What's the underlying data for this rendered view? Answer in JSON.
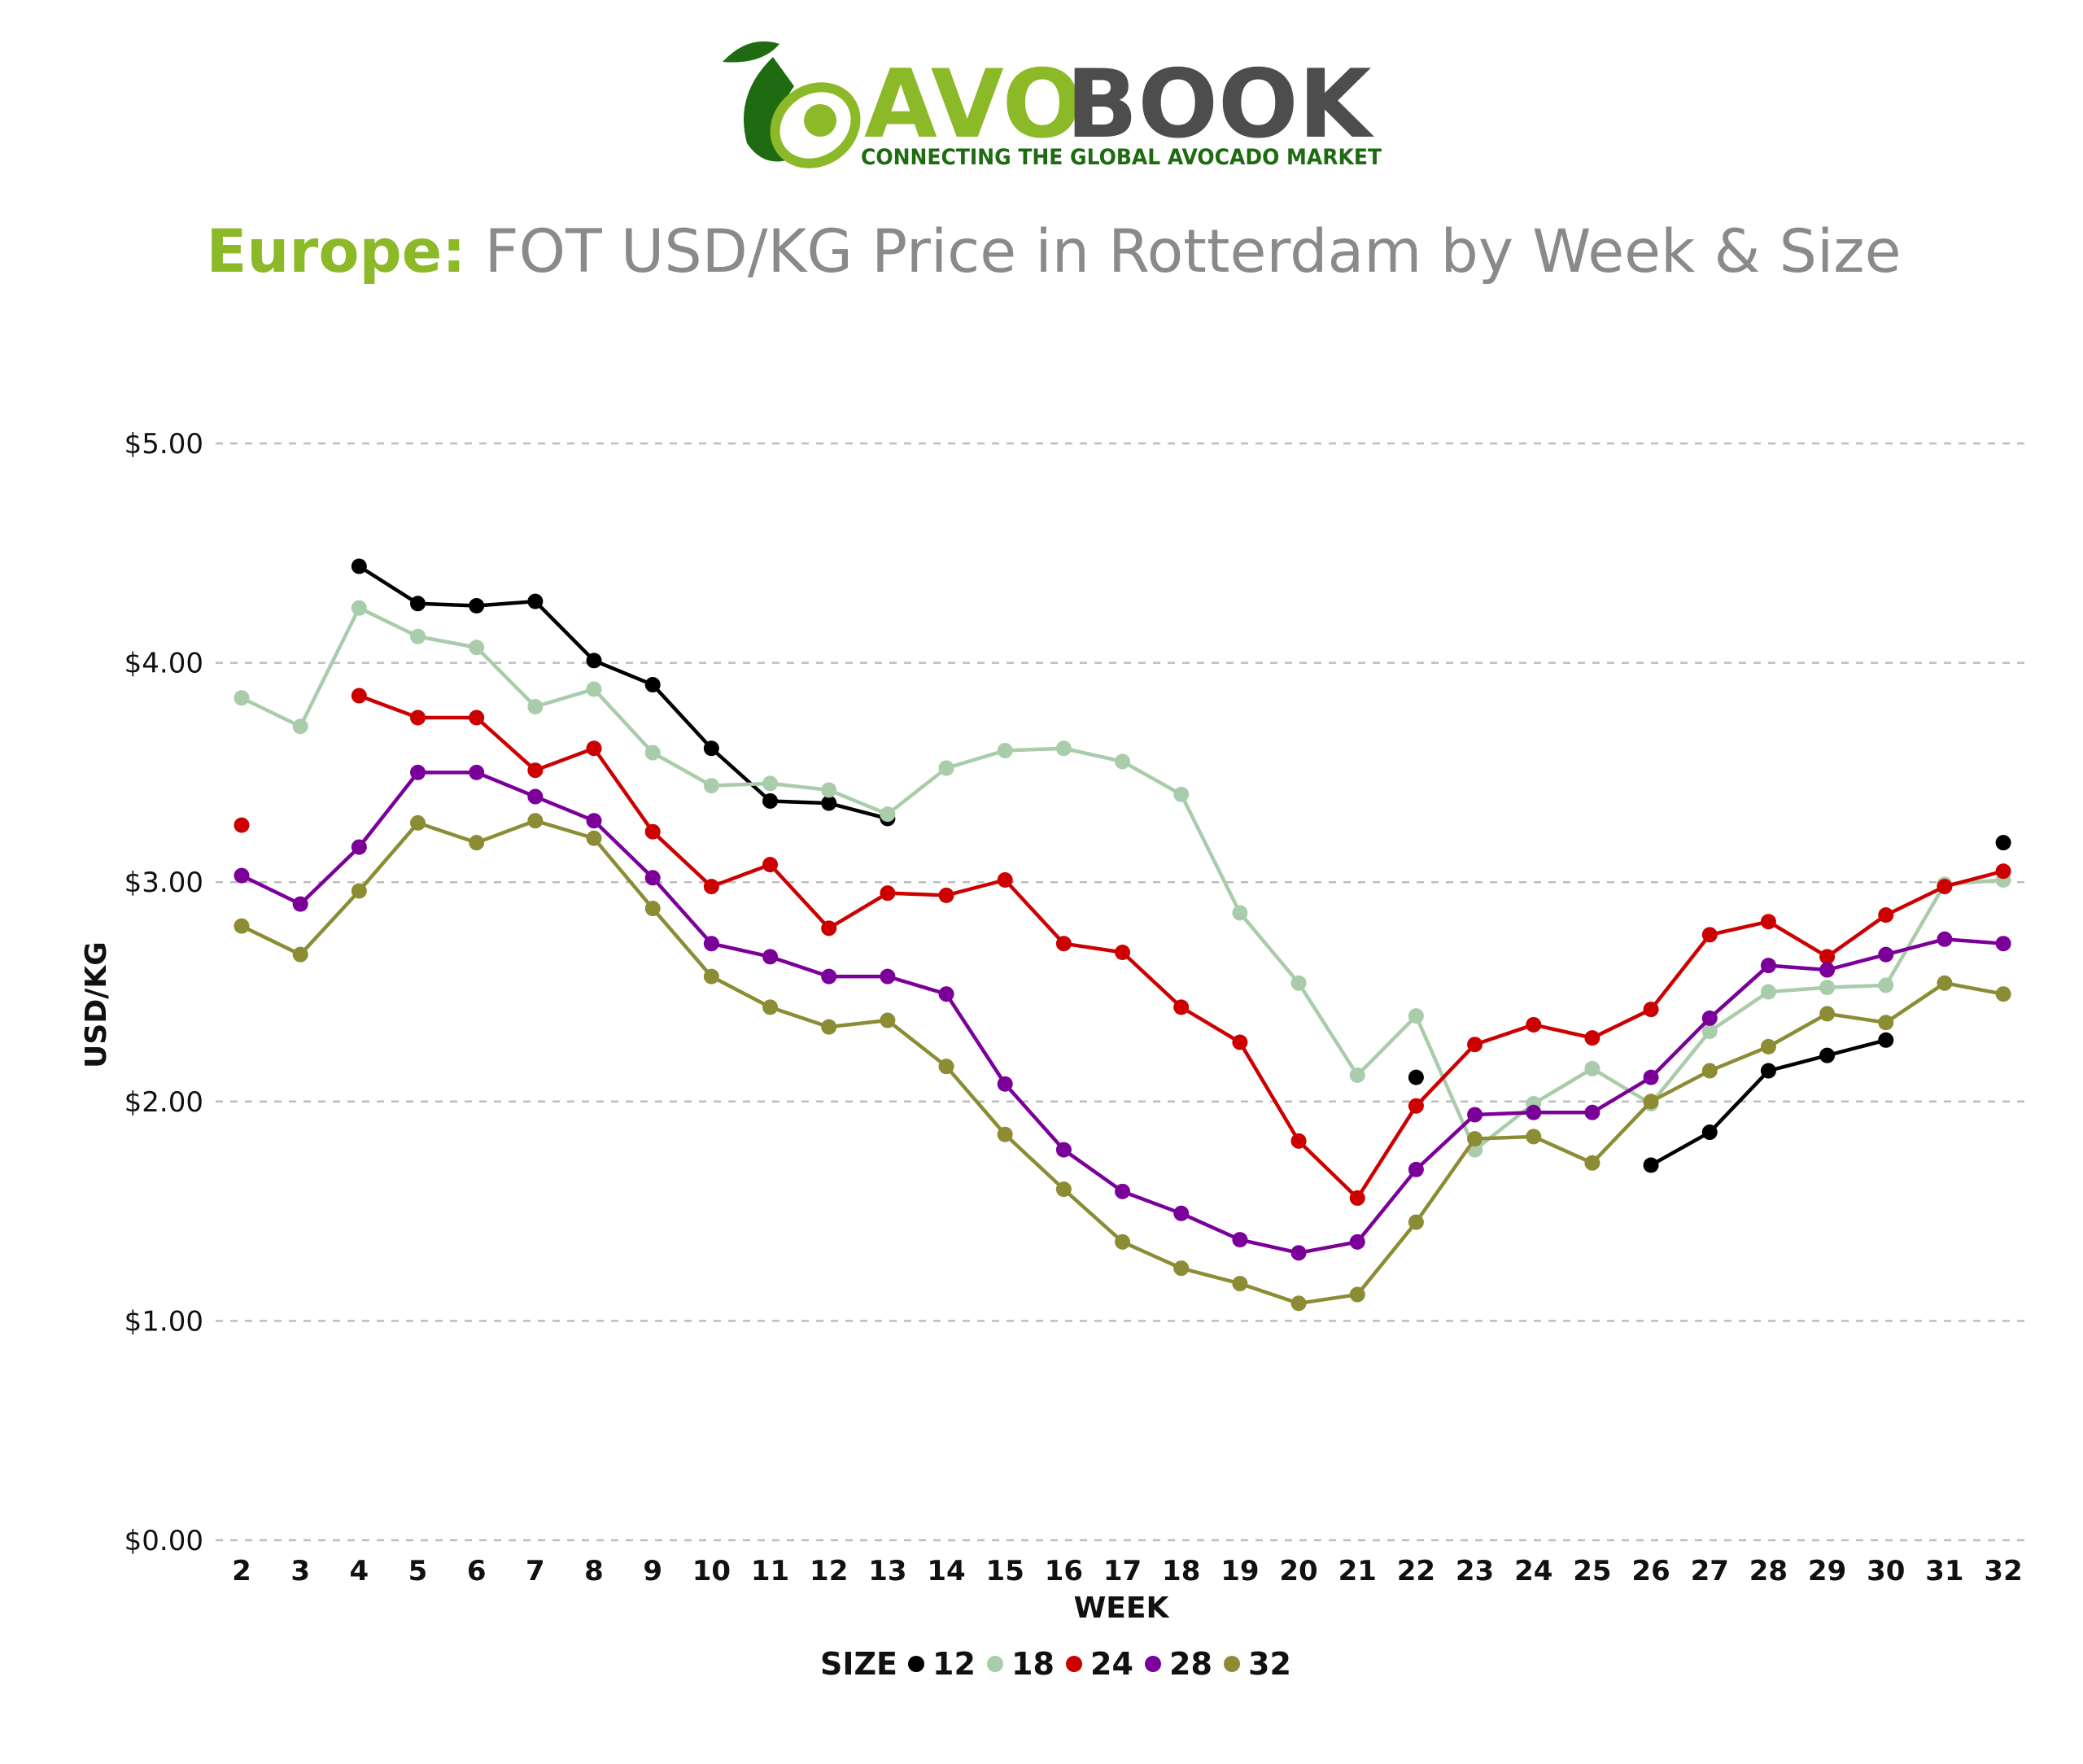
{
  "logo": {
    "brand_avo": "AVO",
    "brand_book": "BOOK",
    "tagline": "CONNECTING THE GLOBAL AVOCADO MARKET"
  },
  "header": {
    "title_region": "Europe:",
    "title_rest": " FOT USD/KG Price in Rotterdam by Week & Size"
  },
  "colors": {
    "brand_green": "#8cb927",
    "dark_green": "#1e6b12",
    "brand_grey": "#4d4d4d",
    "title_grey": "#8a8a8a",
    "grid": "#bdbdbd"
  },
  "chart_data": {
    "type": "line",
    "xlabel": "WEEK",
    "ylabel": "USD/KG",
    "ylim": [
      0,
      5
    ],
    "yticks": [
      0,
      1,
      2,
      3,
      4,
      5
    ],
    "ytick_labels": [
      "$0.00",
      "$1.00",
      "$2.00",
      "$3.00",
      "$4.00",
      "$5.00"
    ],
    "grid": true,
    "legend_title": "SIZE",
    "legend_position": "bottom",
    "x": [
      2,
      3,
      4,
      5,
      6,
      7,
      8,
      9,
      10,
      11,
      12,
      13,
      14,
      15,
      16,
      17,
      18,
      19,
      20,
      21,
      22,
      23,
      24,
      25,
      26,
      27,
      28,
      29,
      30,
      31,
      32
    ],
    "series": [
      {
        "name": "12",
        "color": "#000000",
        "values": [
          null,
          null,
          4.44,
          4.27,
          4.26,
          4.28,
          4.01,
          3.9,
          3.61,
          3.37,
          3.36,
          3.29,
          null,
          null,
          null,
          null,
          null,
          null,
          null,
          null,
          2.11,
          null,
          null,
          null,
          1.71,
          1.86,
          2.14,
          2.21,
          2.28,
          null,
          3.18
        ]
      },
      {
        "name": "18",
        "color": "#a9ccab",
        "values": [
          3.84,
          3.71,
          4.25,
          4.12,
          4.07,
          3.8,
          3.88,
          3.59,
          3.44,
          3.45,
          3.42,
          3.31,
          3.52,
          3.6,
          3.61,
          3.55,
          3.4,
          2.86,
          2.54,
          2.12,
          2.39,
          1.78,
          1.99,
          2.15,
          1.99,
          2.32,
          2.5,
          2.52,
          2.53,
          2.99,
          3.01
        ]
      },
      {
        "name": "24",
        "color": "#cc0000",
        "values": [
          3.26,
          null,
          3.85,
          3.75,
          3.75,
          3.51,
          3.61,
          3.23,
          2.98,
          3.08,
          2.79,
          2.95,
          2.94,
          3.01,
          2.72,
          2.68,
          2.43,
          2.27,
          1.82,
          1.56,
          1.98,
          2.26,
          2.35,
          2.29,
          2.42,
          2.76,
          2.82,
          2.66,
          2.85,
          2.98,
          3.05
        ]
      },
      {
        "name": "28",
        "color": "#7a0099",
        "values": [
          3.03,
          2.9,
          3.16,
          3.5,
          3.5,
          3.39,
          3.28,
          3.02,
          2.72,
          2.66,
          2.57,
          2.57,
          2.49,
          2.08,
          1.78,
          1.59,
          1.49,
          1.37,
          1.31,
          1.36,
          1.69,
          1.94,
          1.95,
          1.95,
          2.11,
          2.38,
          2.62,
          2.6,
          2.67,
          2.74,
          2.72
        ]
      },
      {
        "name": "32",
        "color": "#8c8c34",
        "values": [
          2.8,
          2.67,
          2.96,
          3.27,
          3.18,
          3.28,
          3.2,
          2.88,
          2.57,
          2.43,
          2.34,
          2.37,
          2.16,
          1.85,
          1.6,
          1.36,
          1.24,
          1.17,
          1.08,
          1.12,
          1.45,
          1.83,
          1.84,
          1.72,
          2.0,
          2.14,
          2.25,
          2.4,
          2.36,
          2.54,
          2.49
        ]
      }
    ]
  }
}
